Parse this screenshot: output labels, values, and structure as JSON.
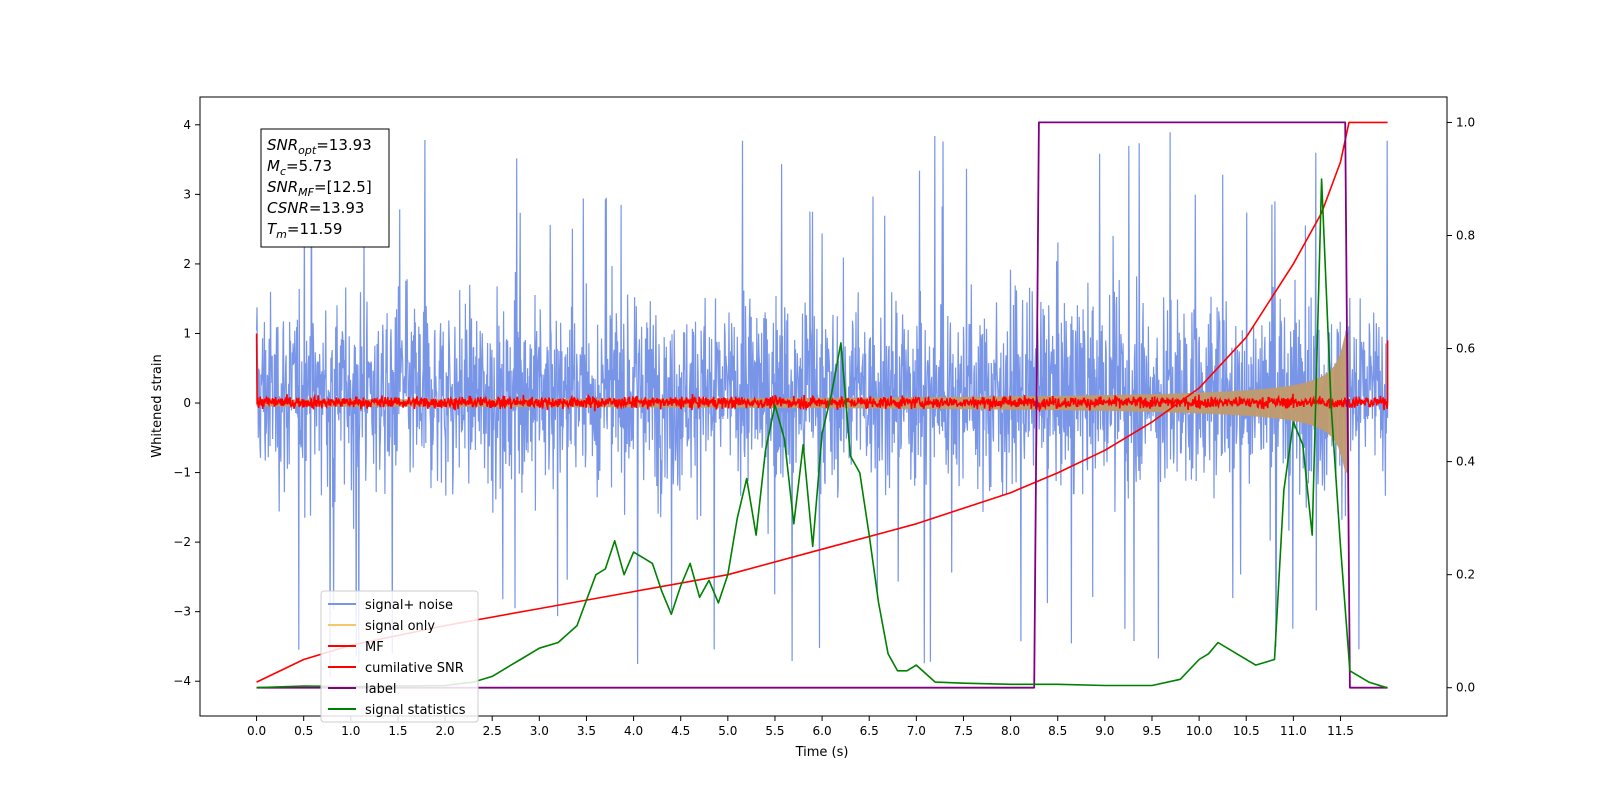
{
  "chart_data": {
    "type": "line",
    "xlabel": "Time (s)",
    "ylabel": "Whitened strain",
    "xlim": [
      -0.6,
      12.63
    ],
    "ylim_left": [
      -4.5,
      4.4
    ],
    "ylim_right": [
      -0.05,
      1.045
    ],
    "x_ticks": [
      "0.0",
      "0.5",
      "1.0",
      "1.5",
      "2.0",
      "2.5",
      "3.0",
      "3.5",
      "4.0",
      "4.5",
      "5.0",
      "5.5",
      "6.0",
      "6.5",
      "7.0",
      "7.5",
      "8.0",
      "8.5",
      "9.0",
      "9.5",
      "10.0",
      "10.5",
      "11.0",
      "11.5"
    ],
    "x_tick_values": [
      0,
      0.5,
      1,
      1.5,
      2,
      2.5,
      3,
      3.5,
      4,
      4.5,
      5,
      5.5,
      6,
      6.5,
      7,
      7.5,
      8,
      8.5,
      9,
      9.5,
      10,
      10.5,
      11,
      11.5
    ],
    "y_left_ticks": [
      "4",
      "3",
      "2",
      "1",
      "0",
      "−1",
      "−2",
      "−3",
      "−4"
    ],
    "y_left_tick_values": [
      4,
      3,
      2,
      1,
      0,
      -1,
      -2,
      -3,
      -4
    ],
    "y_right_ticks": [
      "1.0",
      "0.8",
      "0.6",
      "0.4",
      "0.2",
      "0.0"
    ],
    "y_right_tick_values": [
      1.0,
      0.8,
      0.6,
      0.4,
      0.2,
      0.0
    ],
    "grid": false,
    "legend_position": "lower-left",
    "annotation": [
      {
        "sym": "SNR",
        "sub": "opt",
        "val": "=13.93"
      },
      {
        "sym": "M",
        "sub": "c",
        "val": "=5.73"
      },
      {
        "sym": "SNR",
        "sub": "MF",
        "val": "=[12.5]"
      },
      {
        "sym": "CSNR",
        "sub": "",
        "val": "=13.93"
      },
      {
        "sym": "T",
        "sub": "m",
        "val": "=11.59"
      }
    ],
    "series": [
      {
        "name": "signal+ noise",
        "color": "#7895e8",
        "axis": "left",
        "kind": "noise",
        "x_range": [
          0,
          12.0
        ],
        "typical_band": [
          -2.0,
          2.3
        ],
        "extremes": [
          -4.15,
          4.0
        ]
      },
      {
        "name": "signal only",
        "color": "#f5c86a",
        "axis": "left",
        "kind": "chirp",
        "x_range": [
          0,
          11.59
        ],
        "amplitude_start": 0.05,
        "amplitude_end": 1.0
      },
      {
        "name": "MF",
        "color": "#ff0000",
        "axis": "left",
        "kind": "noise",
        "x_range": [
          0,
          12.0
        ],
        "typical_band": [
          -0.12,
          0.14
        ]
      },
      {
        "name": "cumilative SNR",
        "color": "#ff0000",
        "axis": "right",
        "x": [
          0,
          0.5,
          1,
          2,
          3,
          4,
          5,
          6,
          7,
          8,
          8.5,
          9,
          9.5,
          10,
          10.5,
          11,
          11.3,
          11.5,
          11.59,
          12.0
        ],
        "y": [
          0.01,
          0.05,
          0.075,
          0.11,
          0.14,
          0.17,
          0.2,
          0.245,
          0.29,
          0.345,
          0.38,
          0.42,
          0.47,
          0.53,
          0.62,
          0.75,
          0.84,
          0.93,
          1.0,
          1.0
        ]
      },
      {
        "name": "label",
        "color": "#800080",
        "axis": "right",
        "x": [
          0,
          8.25,
          8.3,
          11.55,
          11.6,
          12.0
        ],
        "y": [
          0,
          0,
          1,
          1,
          0,
          0
        ]
      },
      {
        "name": "signal statistics",
        "color": "#008000",
        "axis": "right",
        "x": [
          0,
          0.5,
          1,
          1.5,
          2,
          2.3,
          2.5,
          2.7,
          2.8,
          3.0,
          3.2,
          3.4,
          3.6,
          3.7,
          3.8,
          3.9,
          4.0,
          4.1,
          4.2,
          4.3,
          4.4,
          4.5,
          4.6,
          4.7,
          4.8,
          4.9,
          5.0,
          5.1,
          5.2,
          5.3,
          5.4,
          5.5,
          5.6,
          5.7,
          5.8,
          5.9,
          6.0,
          6.1,
          6.2,
          6.3,
          6.4,
          6.5,
          6.6,
          6.7,
          6.8,
          6.9,
          7.0,
          7.2,
          7.5,
          8.0,
          8.5,
          9.0,
          9.5,
          9.8,
          10.0,
          10.1,
          10.2,
          10.4,
          10.6,
          10.8,
          10.9,
          11.0,
          11.1,
          11.2,
          11.3,
          11.4,
          11.5,
          11.6,
          11.8,
          11.99
        ],
        "y": [
          0.0,
          0.003,
          0.002,
          0.003,
          0.004,
          0.01,
          0.02,
          0.04,
          0.05,
          0.07,
          0.08,
          0.11,
          0.2,
          0.21,
          0.26,
          0.2,
          0.24,
          0.23,
          0.22,
          0.17,
          0.13,
          0.18,
          0.22,
          0.16,
          0.19,
          0.15,
          0.2,
          0.3,
          0.37,
          0.27,
          0.42,
          0.5,
          0.44,
          0.29,
          0.43,
          0.25,
          0.45,
          0.52,
          0.61,
          0.41,
          0.38,
          0.27,
          0.15,
          0.06,
          0.03,
          0.03,
          0.04,
          0.01,
          0.008,
          0.006,
          0.006,
          0.004,
          0.004,
          0.015,
          0.05,
          0.06,
          0.08,
          0.06,
          0.04,
          0.05,
          0.35,
          0.47,
          0.43,
          0.27,
          0.9,
          0.5,
          0.25,
          0.03,
          0.01,
          0.0
        ]
      }
    ]
  }
}
